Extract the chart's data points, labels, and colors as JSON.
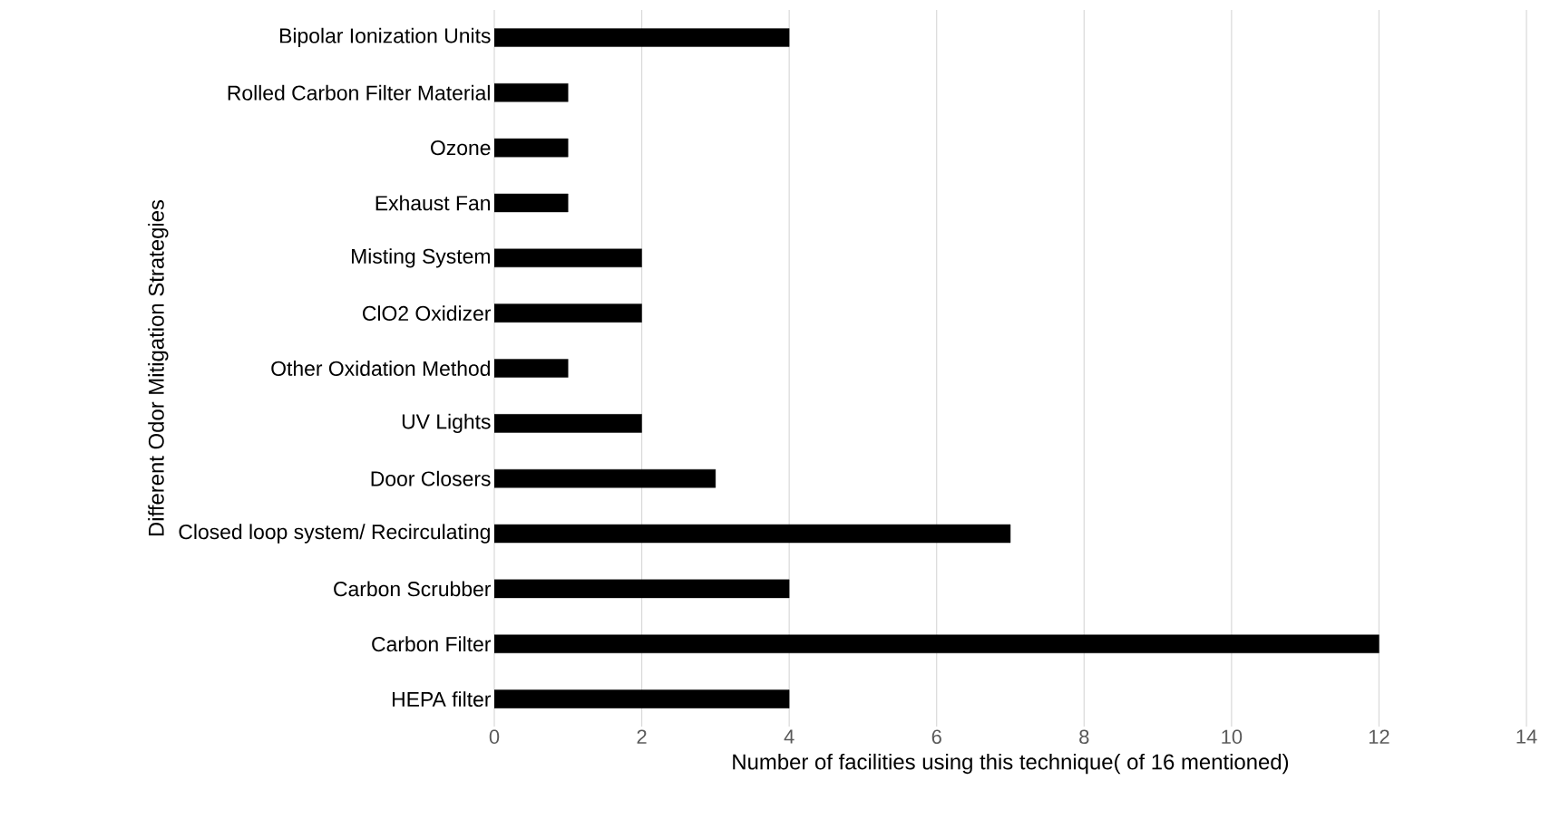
{
  "chart_data": {
    "type": "bar",
    "orientation": "horizontal",
    "xlabel": "Number  of facilities using this technique( of 16 mentioned)",
    "ylabel": "Different Odor Mitigation Strategies",
    "categories": [
      "Bipolar Ionization Units",
      "Rolled Carbon Filter Material",
      "Ozone",
      "Exhaust Fan",
      "Misting System",
      "ClO2 Oxidizer",
      "Other Oxidation Method",
      "UV Lights",
      "Door Closers",
      "Closed loop system/ Recirculating",
      "Carbon Scrubber",
      "Carbon Filter",
      "HEPA filter"
    ],
    "values": [
      4,
      1,
      1,
      1,
      2,
      2,
      1,
      2,
      3,
      7,
      4,
      12,
      4
    ],
    "color": "#000000",
    "xlim": [
      0,
      14
    ],
    "xticks": [
      0,
      2,
      4,
      6,
      8,
      10,
      12,
      14
    ],
    "grid": "x"
  }
}
